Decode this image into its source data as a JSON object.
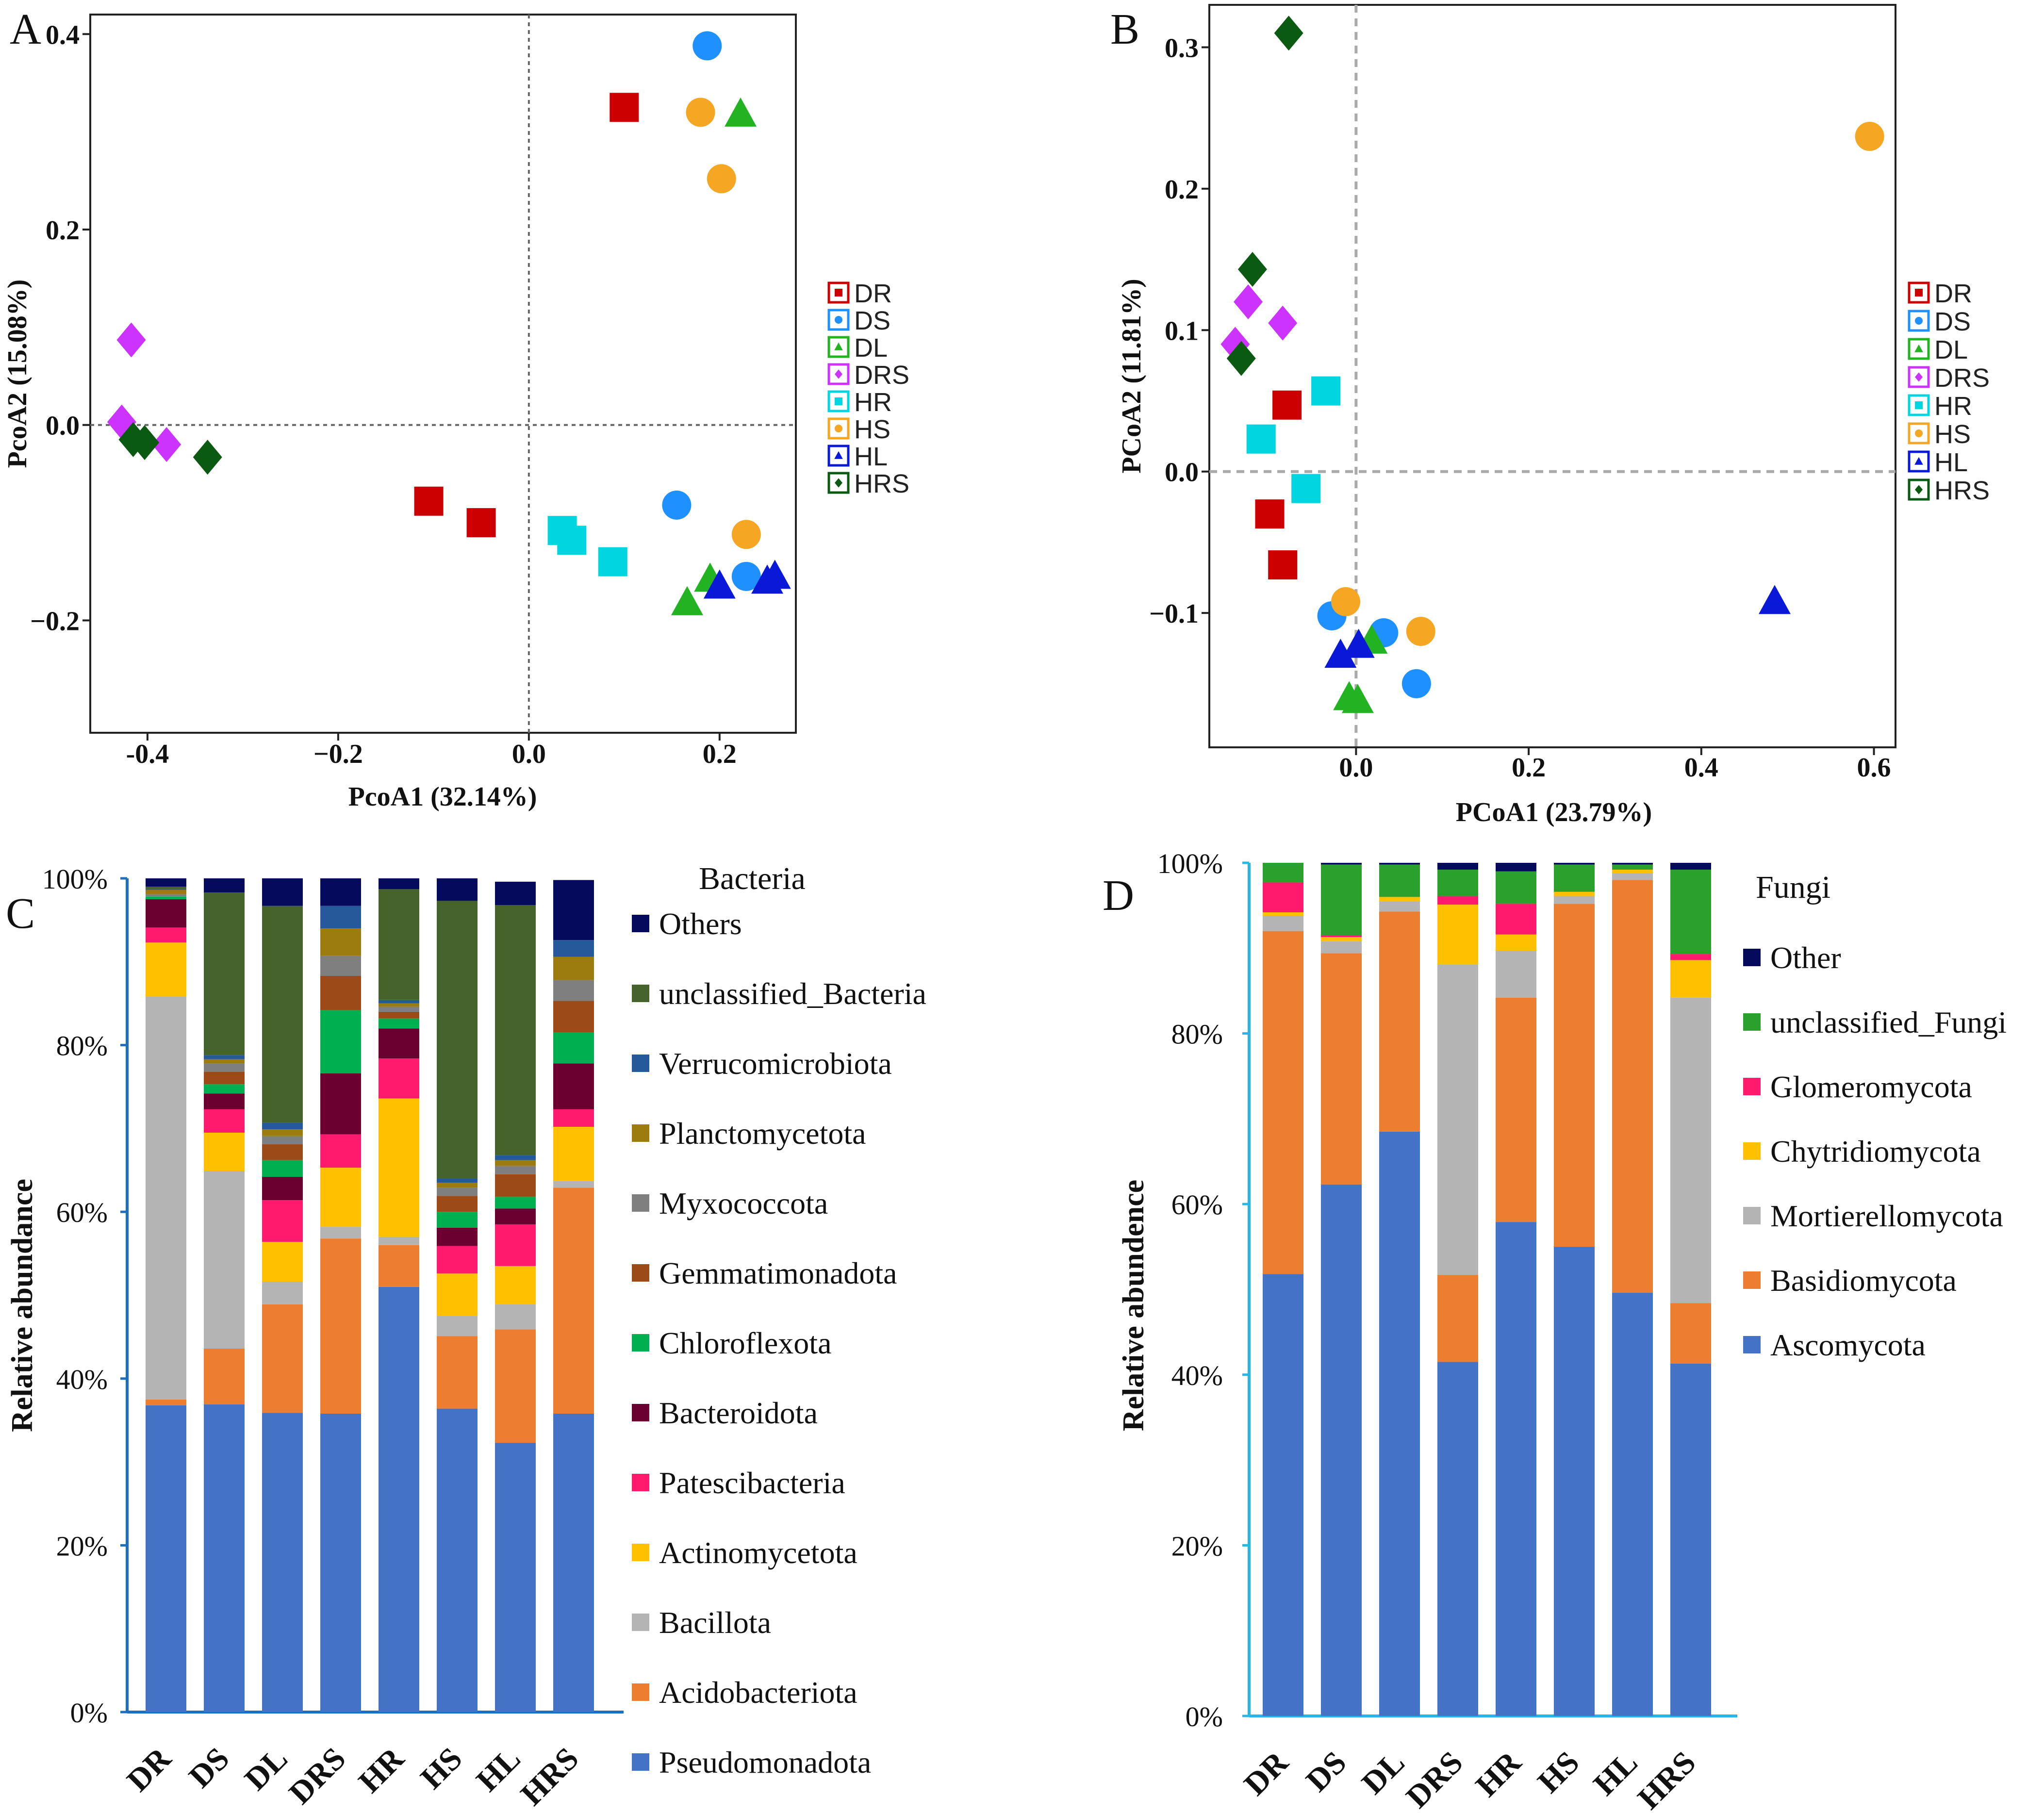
{
  "figure_labels": {
    "A": "A",
    "B": "B",
    "C": "C",
    "D": "D"
  },
  "chart_data": [
    {
      "panel": "A",
      "type": "scatter",
      "xlabel": "PcoA1 (32.14%)",
      "ylabel": "PcoA2 (15.08%)",
      "xlim": [
        -0.46,
        0.28
      ],
      "ylim": [
        -0.315,
        0.42
      ],
      "xticks": [
        {
          "v": -0.4,
          "label": "-0.4"
        },
        {
          "v": -0.2,
          "label": "−0.2"
        },
        {
          "v": 0.0,
          "label": "0.0"
        },
        {
          "v": 0.2,
          "label": "0.2"
        }
      ],
      "yticks": [
        {
          "v": -0.2,
          "label": "−0.2"
        },
        {
          "v": 0.0,
          "label": "0.0"
        },
        {
          "v": 0.2,
          "label": "0.2"
        },
        {
          "v": 0.4,
          "label": "0.4"
        }
      ],
      "ref_lines": {
        "x": 0.0,
        "y": 0.0
      },
      "series": [
        {
          "name": "DR",
          "color": "#cc0000",
          "marker": "square",
          "points": [
            [
              0.1,
              0.325
            ],
            [
              -0.105,
              -0.078
            ],
            [
              -0.05,
              -0.1
            ]
          ]
        },
        {
          "name": "DS",
          "color": "#1e90ff",
          "marker": "circle",
          "points": [
            [
              0.187,
              0.388
            ],
            [
              0.155,
              -0.082
            ],
            [
              0.228,
              -0.155
            ]
          ]
        },
        {
          "name": "DL",
          "color": "#22b222",
          "marker": "triangle",
          "points": [
            [
              0.222,
              0.318
            ],
            [
              0.166,
              -0.182
            ],
            [
              0.19,
              -0.158
            ]
          ]
        },
        {
          "name": "DRS",
          "color": "#cc33ff",
          "marker": "diamond",
          "points": [
            [
              -0.417,
              0.087
            ],
            [
              -0.427,
              0.003
            ],
            [
              -0.38,
              -0.02
            ]
          ]
        },
        {
          "name": "HR",
          "color": "#00d5e0",
          "marker": "square",
          "points": [
            [
              0.035,
              -0.108
            ],
            [
              0.045,
              -0.118
            ],
            [
              0.088,
              -0.14
            ]
          ]
        },
        {
          "name": "HS",
          "color": "#f5a623",
          "marker": "circle",
          "points": [
            [
              0.18,
              0.32
            ],
            [
              0.202,
              0.252
            ],
            [
              0.228,
              -0.112
            ]
          ]
        },
        {
          "name": "HL",
          "color": "#0a19d8",
          "marker": "triangle",
          "points": [
            [
              0.2,
              -0.165
            ],
            [
              0.25,
              -0.16
            ],
            [
              0.258,
              -0.155
            ]
          ]
        },
        {
          "name": "HRS",
          "color": "#0b5a12",
          "marker": "diamond",
          "points": [
            [
              -0.415,
              -0.015
            ],
            [
              -0.403,
              -0.018
            ],
            [
              -0.337,
              -0.033
            ]
          ]
        }
      ]
    },
    {
      "panel": "B",
      "type": "scatter",
      "xlabel": "PCoA1 (23.79%)",
      "ylabel": "PCoA2 (11.81%)",
      "xlim": [
        -0.17,
        0.625
      ],
      "ylim": [
        -0.195,
        0.33
      ],
      "xticks": [
        {
          "v": 0.0,
          "label": "0.0"
        },
        {
          "v": 0.2,
          "label": "0.2"
        },
        {
          "v": 0.4,
          "label": "0.4"
        },
        {
          "v": 0.6,
          "label": "0.6"
        }
      ],
      "yticks": [
        {
          "v": -0.1,
          "label": "−0.1"
        },
        {
          "v": 0.0,
          "label": "0.0"
        },
        {
          "v": 0.1,
          "label": "0.1"
        },
        {
          "v": 0.2,
          "label": "0.2"
        },
        {
          "v": 0.3,
          "label": "0.3"
        }
      ],
      "ref_lines": {
        "x": 0.0,
        "y": 0.0
      },
      "series": [
        {
          "name": "DR",
          "color": "#cc0000",
          "marker": "square",
          "points": [
            [
              -0.08,
              0.047
            ],
            [
              -0.1,
              -0.03
            ],
            [
              -0.085,
              -0.066
            ]
          ]
        },
        {
          "name": "DS",
          "color": "#1e90ff",
          "marker": "circle",
          "points": [
            [
              -0.028,
              -0.102
            ],
            [
              0.032,
              -0.114
            ],
            [
              0.07,
              -0.15
            ]
          ]
        },
        {
          "name": "DL",
          "color": "#22b222",
          "marker": "triangle",
          "points": [
            [
              -0.008,
              -0.16
            ],
            [
              0.002,
              -0.162
            ],
            [
              0.018,
              -0.12
            ]
          ]
        },
        {
          "name": "DRS",
          "color": "#cc33ff",
          "marker": "diamond",
          "points": [
            [
              -0.14,
              0.09
            ],
            [
              -0.125,
              0.12
            ],
            [
              -0.085,
              0.105
            ]
          ]
        },
        {
          "name": "HR",
          "color": "#00d5e0",
          "marker": "square",
          "points": [
            [
              -0.035,
              0.057
            ],
            [
              -0.11,
              0.023
            ],
            [
              -0.058,
              -0.012
            ]
          ]
        },
        {
          "name": "HS",
          "color": "#f5a623",
          "marker": "circle",
          "points": [
            [
              0.595,
              0.237
            ],
            [
              -0.012,
              -0.092
            ],
            [
              0.075,
              -0.113
            ]
          ]
        },
        {
          "name": "HL",
          "color": "#0a19d8",
          "marker": "triangle",
          "points": [
            [
              0.485,
              -0.092
            ],
            [
              -0.018,
              -0.13
            ],
            [
              0.003,
              -0.123
            ]
          ]
        },
        {
          "name": "HRS",
          "color": "#0b5a12",
          "marker": "diamond",
          "points": [
            [
              -0.078,
              0.31
            ],
            [
              -0.12,
              0.143
            ],
            [
              -0.133,
              0.08
            ]
          ]
        }
      ]
    },
    {
      "panel": "C",
      "type": "bar",
      "stacked": true,
      "title": "Bacteria",
      "ylabel": "Relative abundance",
      "ylim": [
        0,
        100
      ],
      "yticks": [
        "0%",
        "20%",
        "40%",
        "60%",
        "80%",
        "100%"
      ],
      "categories": [
        "DR",
        "DS",
        "DL",
        "DRS",
        "HR",
        "HS",
        "HL",
        "HRS"
      ],
      "series": [
        {
          "name": "Pseudomonadota",
          "color": "#4472c4",
          "values": [
            36.8,
            36.9,
            35.9,
            35.8,
            51.0,
            36.4,
            32.3,
            35.8
          ]
        },
        {
          "name": "Acidobacteriota",
          "color": "#ed7d31",
          "values": [
            0.7,
            6.7,
            13.0,
            21.0,
            5.0,
            8.7,
            13.6,
            27.1
          ]
        },
        {
          "name": "Bacillota",
          "color": "#b4b4b4",
          "values": [
            48.3,
            21.3,
            2.7,
            1.4,
            1.0,
            2.4,
            3.0,
            0.8
          ]
        },
        {
          "name": "Actinomycetota",
          "color": "#ffc000",
          "values": [
            6.5,
            4.6,
            4.8,
            7.1,
            16.6,
            5.1,
            4.6,
            6.5
          ]
        },
        {
          "name": "Patescibacteria",
          "color": "#ff1a6e",
          "values": [
            1.8,
            2.8,
            5.0,
            4.0,
            4.8,
            3.3,
            5.0,
            2.1
          ]
        },
        {
          "name": "Bacteroidota",
          "color": "#6b0030",
          "values": [
            3.4,
            1.9,
            2.8,
            7.3,
            3.6,
            2.2,
            1.9,
            5.5
          ]
        },
        {
          "name": "Chloroflexota",
          "color": "#00b050",
          "values": [
            0.3,
            1.1,
            2.0,
            7.6,
            1.2,
            1.9,
            1.4,
            3.7
          ]
        },
        {
          "name": "Gemmatimonadota",
          "color": "#9c4a17",
          "values": [
            0.0,
            1.5,
            1.9,
            4.1,
            0.8,
            1.9,
            2.7,
            3.8
          ]
        },
        {
          "name": "Myxococcota",
          "color": "#7f7f7f",
          "values": [
            0.3,
            1.0,
            1.0,
            2.4,
            0.6,
            1.0,
            1.0,
            2.5
          ]
        },
        {
          "name": "Planctomycetota",
          "color": "#9c7c0e",
          "values": [
            0.5,
            0.5,
            0.8,
            3.3,
            0.4,
            0.6,
            0.7,
            2.8
          ]
        },
        {
          "name": "Verrucomicrobiota",
          "color": "#25599a",
          "values": [
            0.1,
            0.5,
            0.8,
            2.7,
            0.4,
            0.5,
            0.6,
            2.0
          ]
        },
        {
          "name": "unclassified_Bacteria",
          "color": "#46632c",
          "values": [
            0.3,
            19.5,
            26.0,
            0.0,
            13.3,
            33.3,
            30.0,
            0.0
          ]
        },
        {
          "name": "Others",
          "color": "#060a5c",
          "values": [
            1.0,
            1.7,
            3.3,
            3.3,
            1.3,
            2.7,
            2.8,
            7.2
          ]
        }
      ]
    },
    {
      "panel": "D",
      "type": "bar",
      "stacked": true,
      "title": "Fungi",
      "ylabel": "Relative abundence",
      "ylim": [
        0,
        100
      ],
      "yticks": [
        "0%",
        "20%",
        "40%",
        "60%",
        "80%",
        "100%"
      ],
      "categories": [
        "DR",
        "DS",
        "DL",
        "DRS",
        "HR",
        "HS",
        "HL",
        "HRS"
      ],
      "series": [
        {
          "name": "Ascomycota",
          "color": "#4472c4",
          "values": [
            51.8,
            62.3,
            68.5,
            41.5,
            57.9,
            55.0,
            49.6,
            41.3
          ]
        },
        {
          "name": "Basidiomycota",
          "color": "#ed7d31",
          "values": [
            40.2,
            27.1,
            25.8,
            10.2,
            26.3,
            40.2,
            48.4,
            7.1
          ]
        },
        {
          "name": "Mortierellomycota",
          "color": "#b4b4b4",
          "values": [
            1.8,
            1.4,
            1.2,
            36.4,
            5.5,
            0.9,
            0.8,
            35.8
          ]
        },
        {
          "name": "Chytridiomycota",
          "color": "#ffc000",
          "values": [
            0.4,
            0.5,
            0.5,
            7.0,
            1.9,
            0.5,
            0.4,
            4.4
          ]
        },
        {
          "name": "Glomeromycota",
          "color": "#ff1a6e",
          "values": [
            3.5,
            0.2,
            0.0,
            1.0,
            3.6,
            0.0,
            0.0,
            0.7
          ]
        },
        {
          "name": "unclassified_Fungi",
          "color": "#2ca02c",
          "values": [
            2.3,
            8.3,
            3.8,
            3.1,
            3.8,
            3.2,
            0.6,
            9.9
          ]
        },
        {
          "name": "Other",
          "color": "#060a5c",
          "values": [
            0.0,
            0.2,
            0.2,
            0.8,
            1.0,
            0.2,
            0.2,
            0.8
          ]
        }
      ]
    }
  ]
}
